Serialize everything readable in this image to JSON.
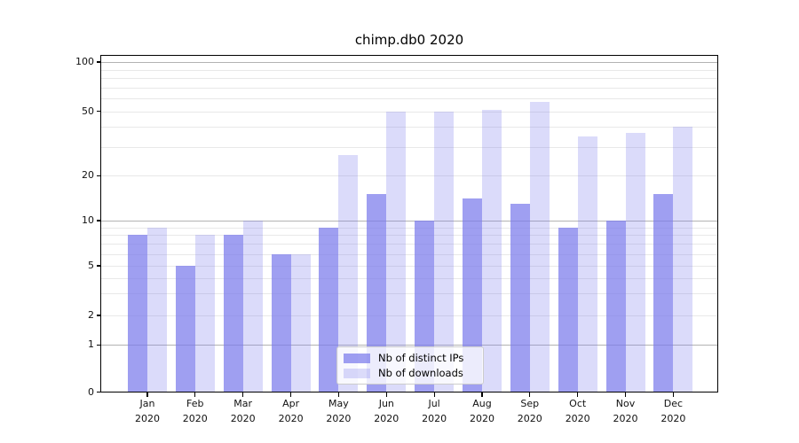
{
  "title": "chimp.db0 2020",
  "legend": {
    "items": [
      {
        "label": "Nb of distinct IPs",
        "color": "rgba(122,122,235,0.72)"
      },
      {
        "label": "Nb of downloads",
        "color": "rgba(122,122,235,0.27)"
      }
    ]
  },
  "chart_data": {
    "type": "bar",
    "title": "chimp.db0 2020",
    "categories": [
      "Jan 2020",
      "Feb 2020",
      "Mar 2020",
      "Apr 2020",
      "May 2020",
      "Jun 2020",
      "Jul 2020",
      "Aug 2020",
      "Sep 2020",
      "Oct 2020",
      "Nov 2020",
      "Dec 2020"
    ],
    "series": [
      {
        "name": "Nb of distinct IPs",
        "color": "rgba(122,122,235,0.72)",
        "values": [
          8,
          5,
          8,
          6,
          9,
          15,
          10,
          14,
          13,
          9,
          10,
          15
        ]
      },
      {
        "name": "Nb of downloads",
        "color": "rgba(122,122,235,0.27)",
        "values": [
          9,
          8,
          10,
          6,
          27,
          50,
          50,
          51,
          57,
          35,
          37,
          40
        ]
      }
    ],
    "yscale": "log-like",
    "yticks": [
      0,
      1,
      2,
      5,
      10,
      20,
      50,
      100
    ],
    "ytick_labels": [
      "0",
      "1",
      "2",
      "5",
      "10",
      "20",
      "50",
      "100"
    ],
    "ylim": [
      0,
      110
    ],
    "xlabel": "",
    "ylabel": "",
    "grid": true,
    "legend_position": "lower center inside axes",
    "colors": {
      "grid_major": "#b3b3b3",
      "grid_minor": "#e8e8e8",
      "axis": "#000000",
      "text": "#111111",
      "background": "#ffffff"
    }
  }
}
